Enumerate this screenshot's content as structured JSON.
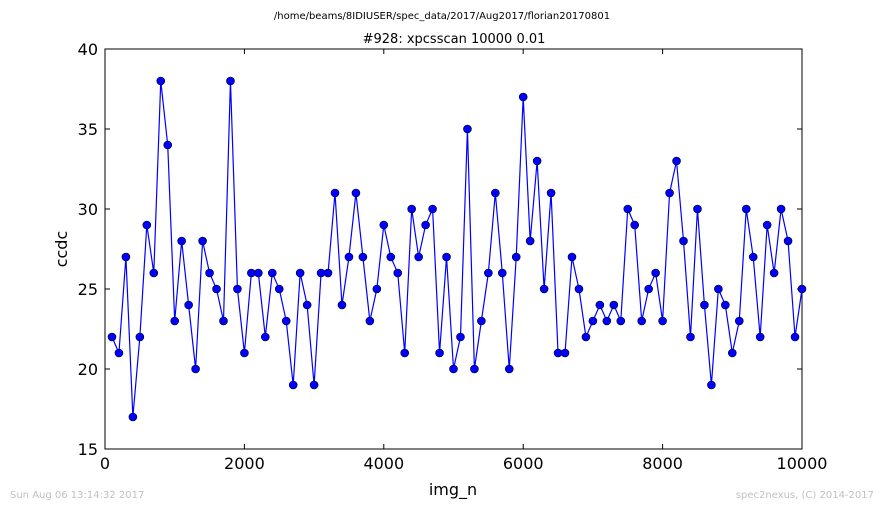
{
  "header": {
    "suptitle": "/home/beams/8IDIUSER/spec_data/2017/Aug2017/florian20170801"
  },
  "footer": {
    "timestamp": "Sun Aug 06 13:14:32 2017",
    "credit": "spec2nexus, (C) 2014-2017"
  },
  "chart_data": {
    "type": "line",
    "title": "#928: xpcsscan 10000 0.01",
    "xlabel": "img_n",
    "ylabel": "ccdc",
    "xlim": [
      0,
      10000
    ],
    "ylim": [
      15,
      40
    ],
    "xticks": [
      0,
      2000,
      4000,
      6000,
      8000,
      10000
    ],
    "yticks": [
      15,
      20,
      25,
      30,
      35,
      40
    ],
    "grid": false,
    "line_color": "#0000ff",
    "marker": "circle",
    "series": [
      {
        "x": [
          100,
          200,
          300,
          400,
          500,
          600,
          700,
          800,
          900,
          1000,
          1100,
          1200,
          1300,
          1400,
          1500,
          1600,
          1700,
          1800,
          1900,
          2000,
          2100,
          2200,
          2300,
          2400,
          2500,
          2600,
          2700,
          2800,
          2900,
          3000,
          3100,
          3200,
          3300,
          3400,
          3500,
          3600,
          3700,
          3800,
          3900,
          4000,
          4100,
          4200,
          4300,
          4400,
          4500,
          4600,
          4700,
          4800,
          4900,
          5000,
          5100,
          5200,
          5300,
          5400,
          5500,
          5600,
          5700,
          5800,
          5900,
          6000,
          6100,
          6200,
          6300,
          6400,
          6500,
          6600,
          6700,
          6800,
          6900,
          7000,
          7100,
          7200,
          7300,
          7400,
          7500,
          7600,
          7700,
          7800,
          7900,
          8000,
          8100,
          8200,
          8300,
          8400,
          8500,
          8600,
          8700,
          8800,
          8900,
          9000,
          9100,
          9200,
          9300,
          9400,
          9500,
          9600,
          9700,
          9800,
          9900,
          10000
        ],
        "y": [
          22,
          21,
          27,
          17,
          22,
          29,
          26,
          38,
          34,
          23,
          28,
          24,
          20,
          28,
          26,
          25,
          23,
          38,
          25,
          21,
          26,
          26,
          22,
          26,
          25,
          23,
          19,
          26,
          24,
          19,
          26,
          26,
          31,
          24,
          27,
          31,
          27,
          23,
          25,
          29,
          27,
          26,
          21,
          30,
          27,
          29,
          30,
          21,
          27,
          20,
          22,
          35,
          20,
          23,
          26,
          31,
          26,
          20,
          27,
          37,
          28,
          33,
          25,
          31,
          21,
          21,
          27,
          25,
          22,
          23,
          24,
          23,
          24,
          23,
          30,
          29,
          23,
          25,
          26,
          23,
          31,
          33,
          28,
          22,
          30,
          24,
          19,
          25,
          24,
          21,
          23,
          30,
          27,
          22,
          29,
          26,
          30,
          28,
          22,
          25
        ]
      }
    ]
  }
}
